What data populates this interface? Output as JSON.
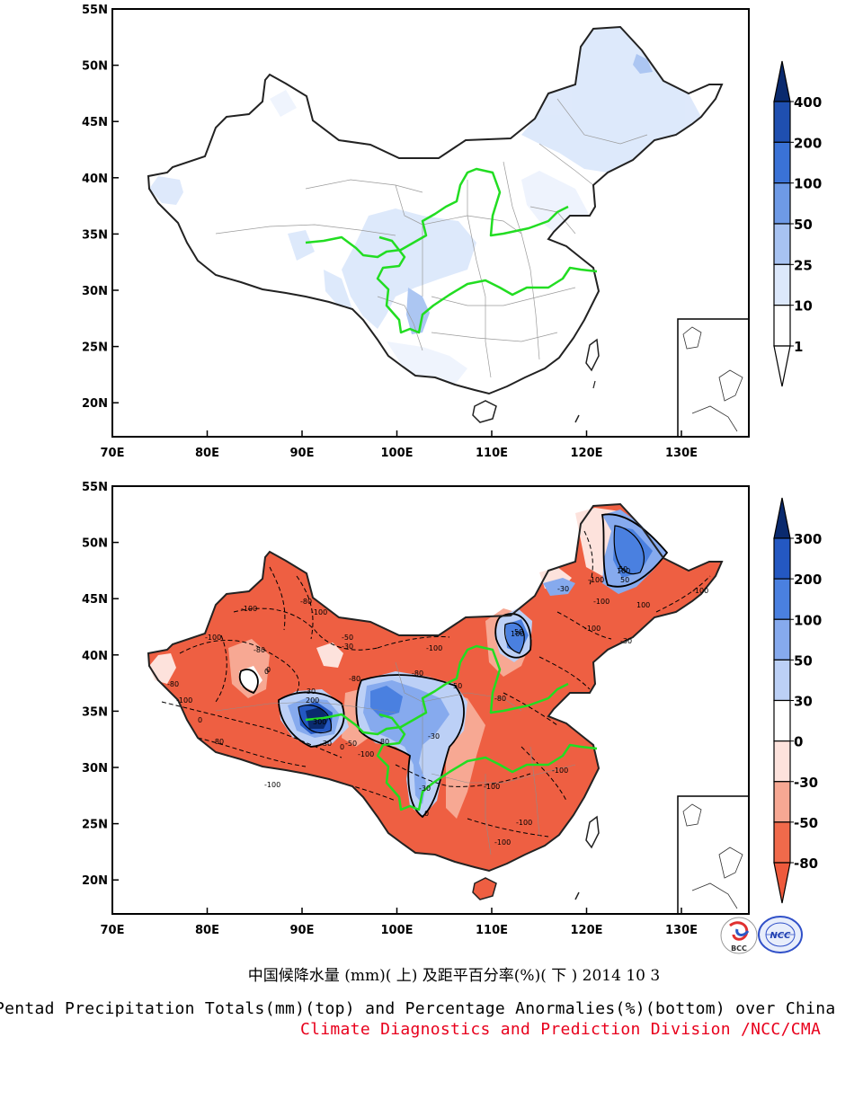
{
  "top_map": {
    "lat_ticks": [
      "55N",
      "50N",
      "45N",
      "40N",
      "35N",
      "30N",
      "25N",
      "20N"
    ],
    "lon_ticks": [
      "70E",
      "80E",
      "90E",
      "100E",
      "110E",
      "120E",
      "130E"
    ],
    "colorbar": {
      "labels": [
        "400",
        "200",
        "100",
        "50",
        "25",
        "10",
        "1"
      ],
      "colors": [
        "#0a2a6e",
        "#1f4fb0",
        "#3a72d6",
        "#6e9ae6",
        "#a8c3f2",
        "#dce8fb",
        "#ffffff"
      ]
    }
  },
  "bottom_map": {
    "lat_ticks": [
      "55N",
      "50N",
      "45N",
      "40N",
      "35N",
      "30N",
      "25N",
      "20N"
    ],
    "lon_ticks": [
      "70E",
      "80E",
      "90E",
      "100E",
      "110E",
      "120E",
      "130E"
    ],
    "colorbar": {
      "labels": [
        "300",
        "200",
        "100",
        "50",
        "30",
        "0",
        "-30",
        "-50",
        "-80"
      ],
      "colors": [
        "#0a2a6e",
        "#2458c2",
        "#4a80e0",
        "#86aaee",
        "#bcd0f6",
        "#ffffff",
        "#fde2dc",
        "#f7a893",
        "#f06a4b",
        "#ee5a3c"
      ]
    },
    "contour_labels": [
      "-100",
      "-80",
      "-50",
      "-30",
      "0",
      "50",
      "100",
      "200",
      "300"
    ]
  },
  "captions": {
    "cn": "中国候降水量 (mm)( 上) 及距平百分率(%)( 下 ) 2014 10 3",
    "en": "Pentad Precipitation Totals(mm)(top) and Percentage Anormalies(%)(bottom) over China",
    "credit": "Climate Diagnostics and Prediction Division /NCC/CMA"
  },
  "logos": {
    "bcc": "BCC",
    "ncc": "NCC"
  },
  "colors": {
    "river": "#22dd22",
    "frame": "#000000"
  }
}
